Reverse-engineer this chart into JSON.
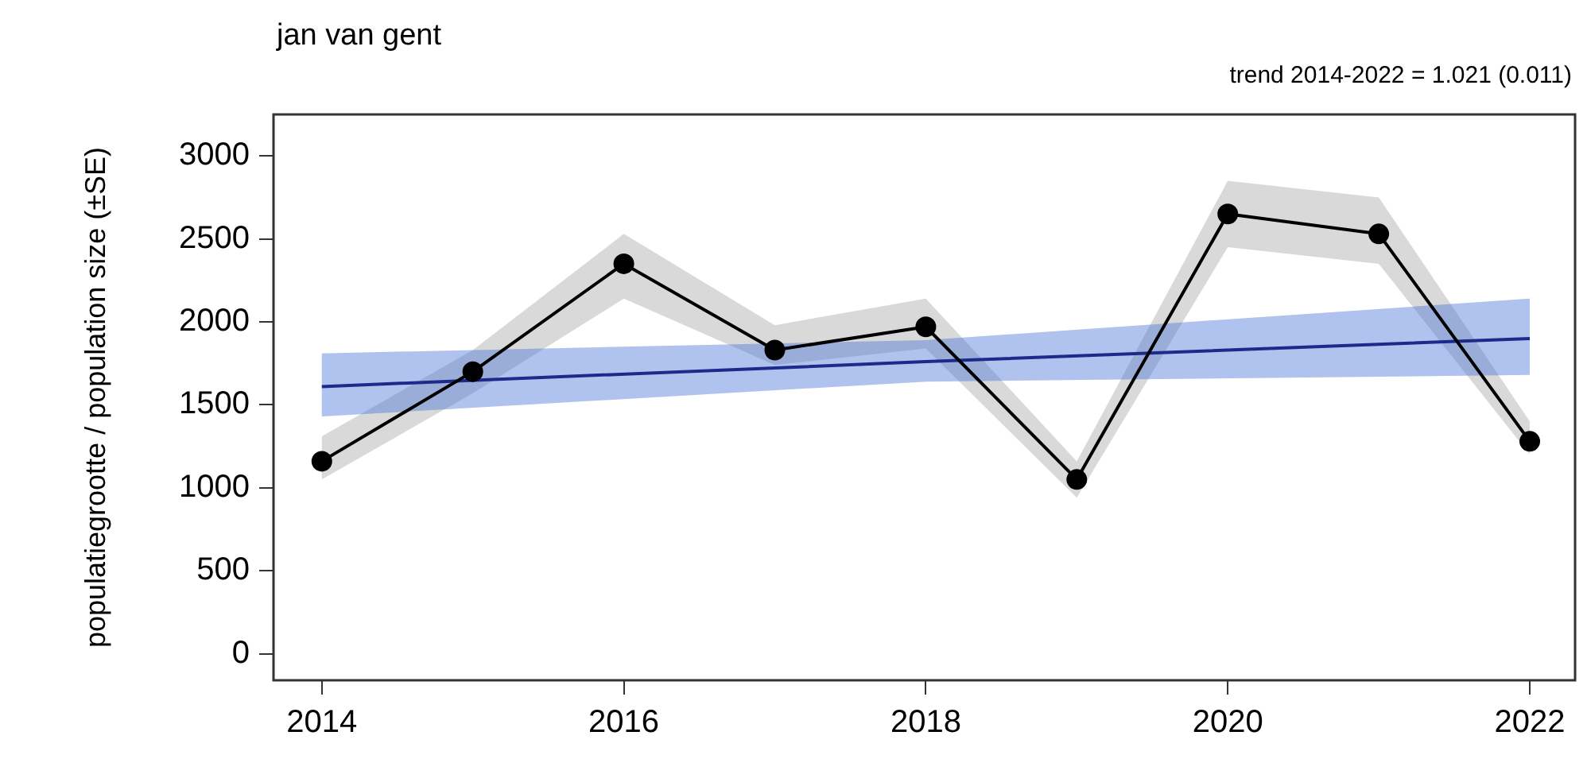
{
  "chart_data": {
    "type": "line",
    "title": "jan van gent",
    "ylabel": "populatiegrootte / population size (±SE)",
    "annotations": [
      "trend 2014-2022 = 1.021 (0.011)"
    ],
    "x": [
      2014,
      2015,
      2016,
      2017,
      2018,
      2019,
      2020,
      2021,
      2022
    ],
    "series": [
      {
        "color": "#000000",
        "marker": "circle",
        "values": [
          1160,
          1700,
          2350,
          1830,
          1970,
          1050,
          2650,
          2530,
          1280
        ],
        "lower": [
          1050,
          1570,
          2140,
          1740,
          1840,
          940,
          2450,
          2350,
          1200
        ],
        "upper": [
          1310,
          1830,
          2530,
          1980,
          2140,
          1160,
          2850,
          2750,
          1400
        ]
      },
      {
        "color": "#1c2a8c",
        "marker": "none",
        "x": [
          2014,
          2018,
          2022
        ],
        "values": [
          1610,
          1760,
          1900
        ],
        "lower": [
          1430,
          1640,
          1680
        ],
        "upper": [
          1810,
          1890,
          2140
        ]
      }
    ],
    "xlim": [
      2013.68,
      2022.3
    ],
    "xticks": [
      2014,
      2016,
      2018,
      2020,
      2022
    ],
    "ylim": [
      -160,
      3250
    ],
    "yticks": [
      0,
      500,
      1000,
      1500,
      2000,
      2500,
      3000
    ],
    "grid": false,
    "legend": false
  }
}
